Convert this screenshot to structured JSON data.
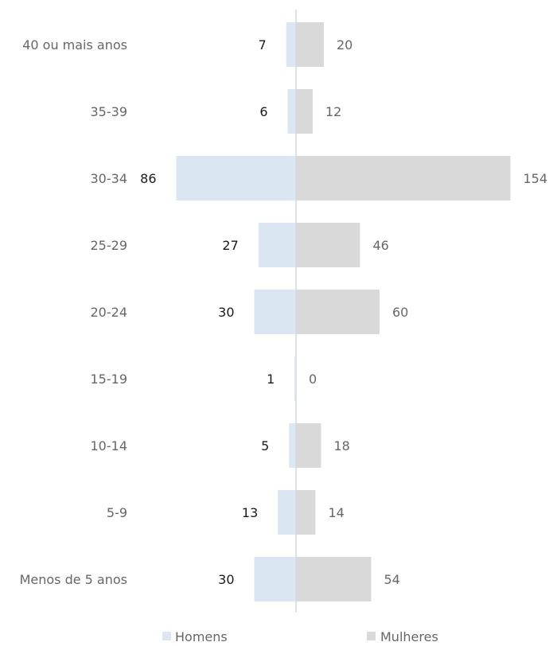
{
  "chart_data": {
    "type": "bar",
    "orientation": "horizontal",
    "layout": "population-pyramid",
    "categories": [
      "40 ou mais anos",
      "35-39",
      "30-34",
      "25-29",
      "20-24",
      "15-19",
      "10-14",
      "5-9",
      "Menos de 5 anos"
    ],
    "series": [
      {
        "name": "Homens",
        "values": [
          7,
          6,
          86,
          27,
          30,
          1,
          5,
          13,
          30
        ],
        "color": "#dae6f2"
      },
      {
        "name": "Mulheres",
        "values": [
          20,
          12,
          154,
          46,
          60,
          0,
          18,
          14,
          54
        ],
        "color": "#d9d9d9"
      }
    ],
    "axis_line_color": "#d9d9d9",
    "legend_position": "bottom",
    "grid": false
  }
}
